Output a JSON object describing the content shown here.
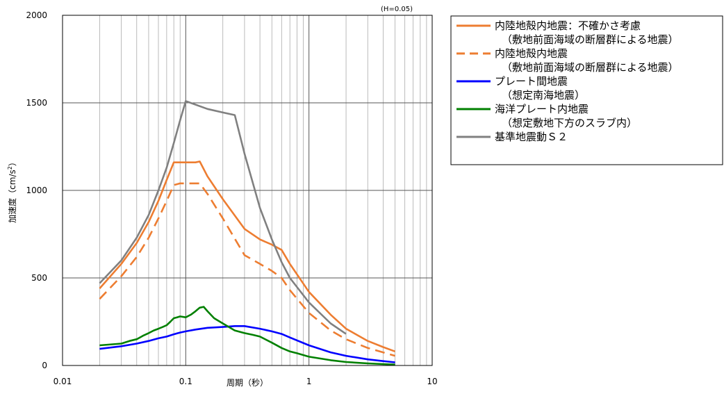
{
  "chart_data": {
    "type": "line",
    "annotation": "(H=0.05)",
    "xlabel": "周期（秒）",
    "ylabel_main": "加速度（cm/s",
    "ylabel_sup": "2",
    "ylabel_end": "）",
    "xscale": "log",
    "xlim": [
      0.01,
      10
    ],
    "ylim": [
      0,
      2000
    ],
    "xticks": [
      0.01,
      0.1,
      1,
      10
    ],
    "xtick_labels": [
      "0.01",
      "0.1",
      "1",
      "10"
    ],
    "yticks": [
      0,
      500,
      1000,
      1500,
      2000
    ],
    "ytick_labels": [
      "0",
      "500",
      "1000",
      "1500",
      "2000"
    ],
    "grid": true,
    "legend_position": "right",
    "series": [
      {
        "legend_lines": [
          "内陸地殻内地震：不確かさ考慮",
          "（敷地前面海域の断層群による地震）"
        ],
        "color": "#ED7D31",
        "dash": "solid",
        "x": [
          0.02,
          0.03,
          0.04,
          0.05,
          0.06,
          0.07,
          0.08,
          0.09,
          0.1,
          0.12,
          0.13,
          0.15,
          0.2,
          0.3,
          0.4,
          0.5,
          0.6,
          0.7,
          1.0,
          1.5,
          2.0,
          3.0,
          4.0,
          5.0
        ],
        "y": [
          440,
          580,
          700,
          820,
          940,
          1060,
          1160,
          1160,
          1160,
          1160,
          1165,
          1080,
          950,
          780,
          720,
          690,
          660,
          580,
          420,
          290,
          210,
          140,
          105,
          80
        ]
      },
      {
        "legend_lines": [
          "内陸地殻内地震",
          "（敷地前面海域の断層群による地震）"
        ],
        "color": "#ED7D31",
        "dash": "dashed",
        "x": [
          0.02,
          0.03,
          0.04,
          0.05,
          0.06,
          0.07,
          0.08,
          0.09,
          0.1,
          0.12,
          0.13,
          0.15,
          0.2,
          0.3,
          0.4,
          0.5,
          0.6,
          0.7,
          1.0,
          1.5,
          2.0,
          3.0,
          4.0,
          5.0
        ],
        "y": [
          380,
          510,
          620,
          730,
          840,
          940,
          1030,
          1040,
          1040,
          1040,
          1040,
          980,
          840,
          630,
          580,
          540,
          500,
          430,
          300,
          200,
          150,
          100,
          75,
          55
        ]
      },
      {
        "legend_lines": [
          "プレート間地震",
          "（想定南海地震）"
        ],
        "color": "#0000FF",
        "dash": "solid",
        "x": [
          0.02,
          0.03,
          0.04,
          0.05,
          0.06,
          0.07,
          0.08,
          0.09,
          0.1,
          0.12,
          0.15,
          0.2,
          0.25,
          0.3,
          0.4,
          0.5,
          0.6,
          0.7,
          1.0,
          1.5,
          2.0,
          3.0,
          4.0,
          5.0
        ],
        "y": [
          95,
          110,
          125,
          140,
          155,
          165,
          178,
          188,
          195,
          205,
          215,
          220,
          225,
          225,
          210,
          195,
          180,
          160,
          115,
          75,
          55,
          35,
          25,
          18
        ]
      },
      {
        "legend_lines": [
          "海洋プレート内地震",
          "（想定敷地下方のスラブ内）"
        ],
        "color": "#008000",
        "dash": "solid",
        "x": [
          0.02,
          0.03,
          0.035,
          0.04,
          0.045,
          0.05,
          0.055,
          0.06,
          0.065,
          0.07,
          0.075,
          0.08,
          0.085,
          0.09,
          0.1,
          0.11,
          0.12,
          0.13,
          0.14,
          0.15,
          0.17,
          0.2,
          0.25,
          0.3,
          0.35,
          0.4,
          0.5,
          0.6,
          0.7,
          0.8,
          1.0,
          1.5,
          2.0,
          3.0,
          4.0,
          5.0
        ],
        "y": [
          115,
          125,
          140,
          150,
          170,
          185,
          200,
          210,
          220,
          230,
          250,
          270,
          275,
          280,
          275,
          290,
          310,
          330,
          335,
          310,
          270,
          240,
          200,
          185,
          175,
          165,
          130,
          100,
          80,
          70,
          50,
          30,
          20,
          12,
          8,
          5
        ]
      },
      {
        "legend_lines": [
          "基準地震動Ｓ２"
        ],
        "color": "#808080",
        "dash": "solid",
        "x": [
          0.02,
          0.03,
          0.04,
          0.05,
          0.06,
          0.07,
          0.08,
          0.09,
          0.1,
          0.15,
          0.2,
          0.25,
          0.3,
          0.4,
          0.5,
          0.6,
          0.7,
          1.0,
          1.5,
          2.0
        ],
        "y": [
          470,
          600,
          730,
          860,
          1000,
          1130,
          1270,
          1400,
          1510,
          1465,
          1445,
          1430,
          1210,
          900,
          720,
          590,
          500,
          360,
          240,
          180
        ]
      }
    ]
  }
}
